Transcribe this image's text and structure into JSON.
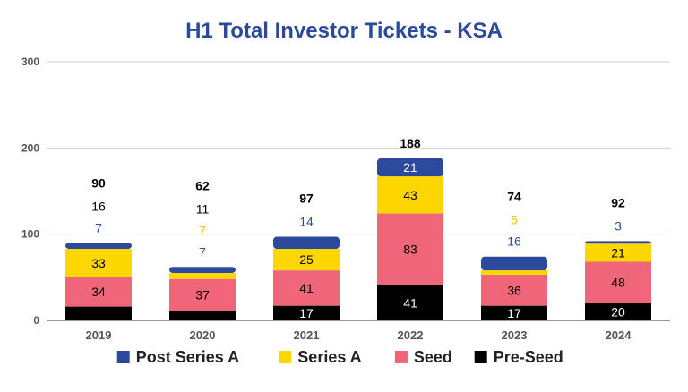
{
  "chart_data": {
    "type": "bar",
    "stacked": true,
    "title": "H1 Total Investor Tickets - KSA",
    "categories": [
      "2019",
      "2020",
      "2021",
      "2022",
      "2023",
      "2024"
    ],
    "ylim": [
      0,
      300
    ],
    "yticks": [
      "0",
      "100",
      "200",
      "300"
    ],
    "grid": true,
    "legend_position": "bottom",
    "series": [
      {
        "name": "Pre-Seed",
        "color": "#000000",
        "values": [
          16,
          11,
          17,
          41,
          17,
          20
        ]
      },
      {
        "name": "Seed",
        "color": "#ee6677",
        "values": [
          34,
          37,
          41,
          83,
          36,
          48
        ]
      },
      {
        "name": "Series A",
        "color": "#ffd700",
        "values": [
          33,
          7,
          25,
          43,
          5,
          21
        ]
      },
      {
        "name": "Post Series A",
        "color": "#2b4a9e",
        "values": [
          7,
          7,
          14,
          21,
          16,
          3
        ]
      }
    ],
    "totals": [
      90,
      62,
      97,
      188,
      74,
      92
    ]
  }
}
